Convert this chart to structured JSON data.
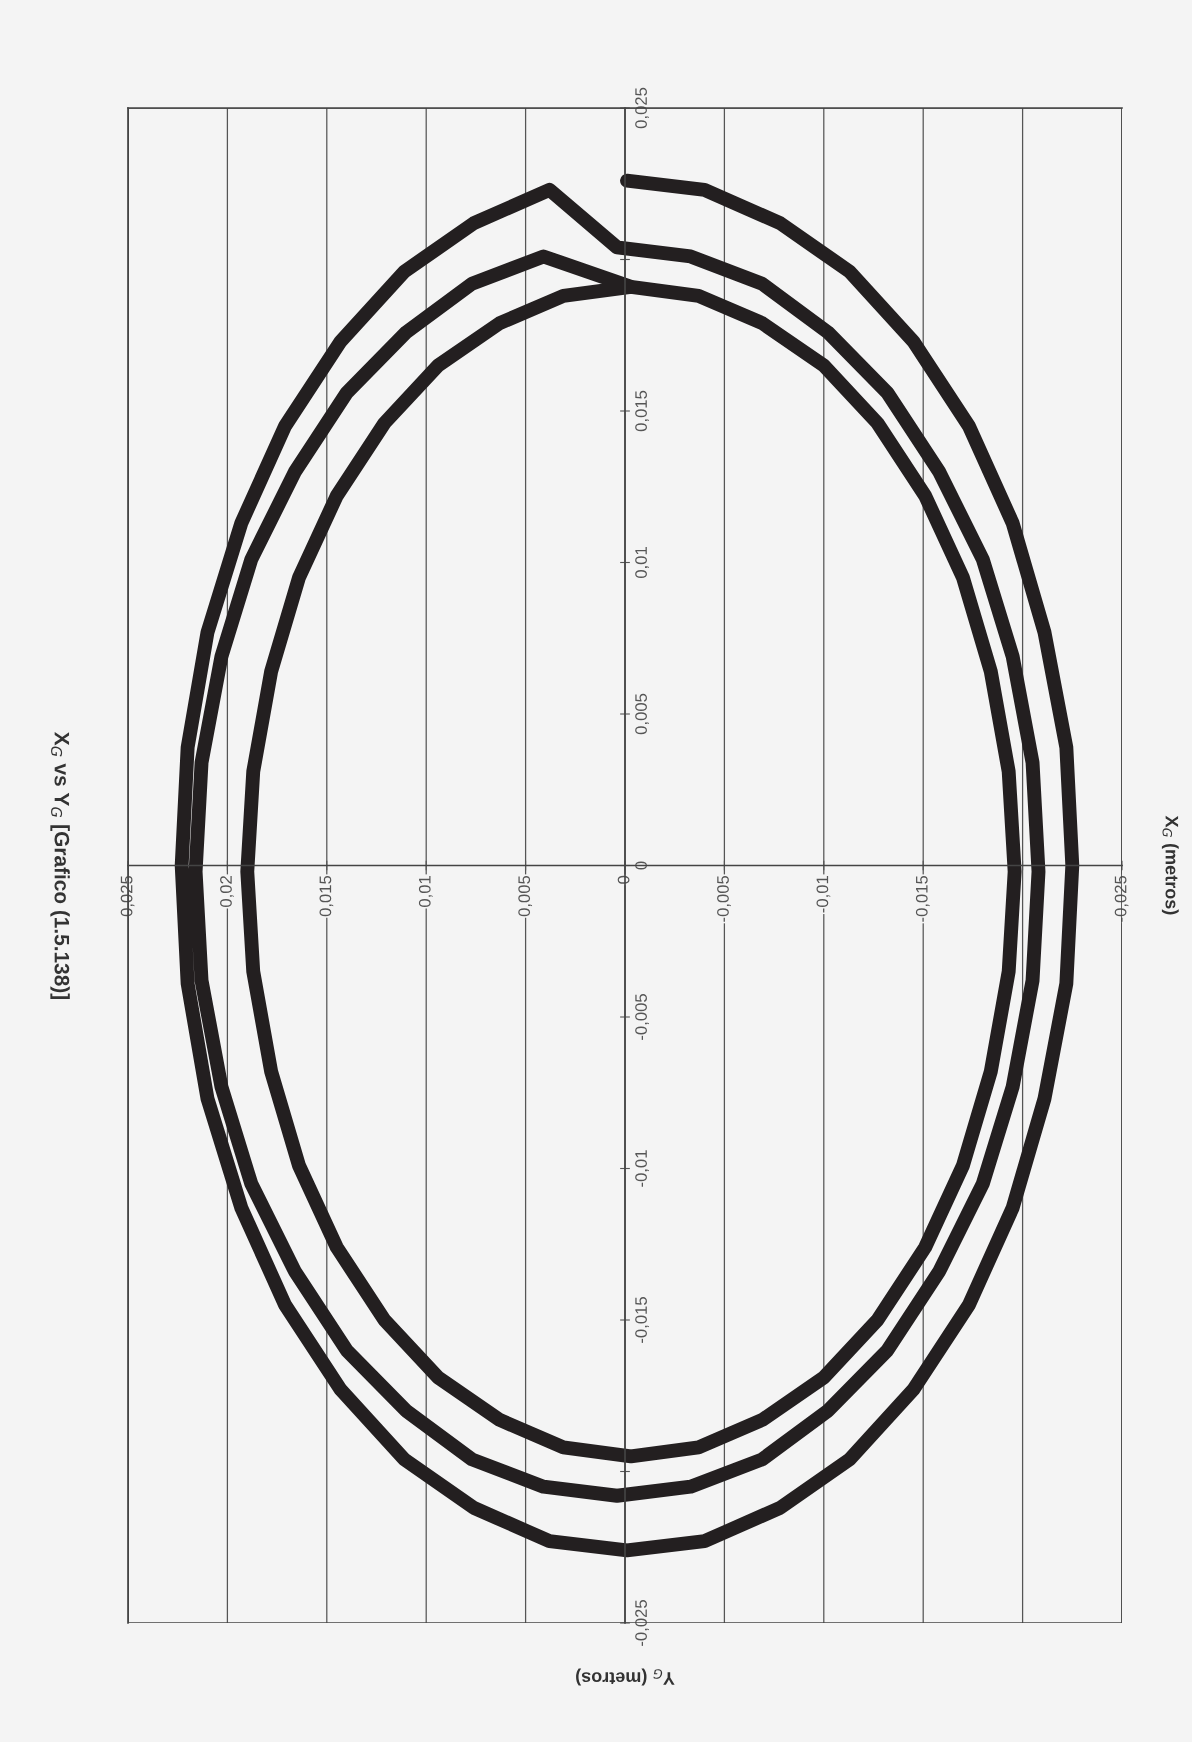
{
  "chart_data": {
    "type": "line",
    "title": "X$_{G}$ vs Y$_{G}$ [Grafico (1.5.138)]",
    "xlabel": "Y$_{G}$ (metros)",
    "ylabel": "X$_{G}$ (metros)",
    "xlim": [
      0.025,
      -0.025
    ],
    "ylim": [
      -0.025,
      0.025
    ],
    "xticks": [
      {
        "value": 0.025,
        "label": "0,025"
      },
      {
        "value": 0.02,
        "label": "0,02"
      },
      {
        "value": 0.015,
        "label": "0,015"
      },
      {
        "value": 0.01,
        "label": "0,01"
      },
      {
        "value": 0.005,
        "label": "0,005"
      },
      0,
      {
        "value": -0.005,
        "label": "-0,005"
      },
      {
        "value": -0.01,
        "label": "-0,01"
      },
      {
        "value": -0.015,
        "label": "-0,015"
      },
      {
        "value": -0.02,
        "label": null
      },
      {
        "value": -0.025,
        "label": "-0,025"
      }
    ],
    "yticks": [
      {
        "value": 0.025,
        "label": "0,025"
      },
      {
        "value": 0.02,
        "label": null
      },
      {
        "value": 0.015,
        "label": "0,015"
      },
      {
        "value": 0.01,
        "label": "0,01"
      },
      {
        "value": 0.005,
        "label": "0,005"
      },
      0,
      {
        "value": -0.005,
        "label": "-0,005"
      },
      {
        "value": -0.01,
        "label": "-0,01"
      },
      {
        "value": -0.015,
        "label": "-0,015"
      },
      {
        "value": -0.02,
        "label": null
      },
      {
        "value": -0.025,
        "label": "-0,025"
      }
    ],
    "grid": "x",
    "line_style": "solid",
    "series": [
      {
        "color": "#231f20",
        "x": [
          -0.0001,
          -0.004,
          -0.0078,
          -0.0113,
          -0.0145,
          -0.0173,
          -0.0195,
          -0.0211,
          -0.0222,
          -0.0225,
          -0.0222,
          -0.0211,
          -0.0195,
          -0.0173,
          -0.0145,
          -0.0113,
          -0.0078,
          -0.004,
          -0.0001,
          0.0038,
          0.0076,
          0.0111,
          0.0143,
          0.0171,
          0.0193,
          0.021,
          0.022,
          0.0223,
          0.022,
          0.021,
          0.0193,
          0.0171,
          0.0143,
          0.0111,
          0.0076,
          0.0038,
          0.0004,
          -0.0033,
          -0.0069,
          -0.0102,
          -0.0132,
          -0.0158,
          -0.018,
          -0.0195,
          -0.0205,
          -0.0208,
          -0.0205,
          -0.0195,
          -0.018,
          -0.0158,
          -0.0132,
          -0.0102,
          -0.0069,
          -0.0033,
          0.0004,
          0.0041,
          0.0077,
          0.011,
          0.014,
          0.0166,
          0.0188,
          0.0203,
          0.0213,
          0.0216,
          0.0213,
          0.0203,
          0.0188,
          0.0166,
          0.014,
          0.011,
          0.0077,
          0.0041,
          -0.0003,
          -0.0037,
          -0.0069,
          -0.01,
          -0.0127,
          -0.0151,
          -0.017,
          -0.0184,
          -0.0193,
          -0.0196,
          -0.0193,
          -0.0184,
          -0.017,
          -0.0151,
          -0.0127,
          -0.01,
          -0.0069,
          -0.0037,
          -0.0003,
          0.0031,
          0.0063,
          0.0094,
          0.0121,
          0.0145,
          0.0164,
          0.0178,
          0.0187,
          0.019,
          0.0187,
          0.0178,
          0.0164,
          0.0145,
          0.0121,
          0.0094,
          0.0063,
          0.0031,
          -0.0003
        ],
        "values": [
          0.0226,
          0.0223,
          0.0212,
          0.0196,
          0.0173,
          0.0145,
          0.0113,
          0.0077,
          0.0039,
          0.0,
          -0.0039,
          -0.0077,
          -0.0113,
          -0.0145,
          -0.0173,
          -0.0196,
          -0.0212,
          -0.0223,
          -0.0226,
          -0.0223,
          -0.0212,
          -0.0196,
          -0.0173,
          -0.0145,
          -0.0113,
          -0.0077,
          -0.0039,
          0.0,
          0.0039,
          0.0077,
          0.0113,
          0.0145,
          0.0173,
          0.0196,
          0.0212,
          0.0223,
          0.0204,
          0.0201,
          0.0192,
          0.0176,
          0.0156,
          0.013,
          0.0101,
          0.0069,
          0.0034,
          -0.0002,
          -0.0038,
          -0.0073,
          -0.0105,
          -0.0134,
          -0.016,
          -0.018,
          -0.0196,
          -0.0205,
          -0.0208,
          -0.0205,
          -0.0196,
          -0.018,
          -0.016,
          -0.0134,
          -0.0105,
          -0.0073,
          -0.0038,
          -0.0002,
          0.0034,
          0.0069,
          0.0101,
          0.013,
          0.0156,
          0.0176,
          0.0192,
          0.0201,
          0.0191,
          0.0188,
          0.0179,
          0.0165,
          0.0146,
          0.0122,
          0.0095,
          0.0064,
          0.0031,
          -0.0002,
          -0.0035,
          -0.0068,
          -0.0099,
          -0.0126,
          -0.015,
          -0.0169,
          -0.0183,
          -0.0192,
          -0.0195,
          -0.0192,
          -0.0183,
          -0.0169,
          -0.015,
          -0.0126,
          -0.0099,
          -0.0068,
          -0.0035,
          -0.0002,
          0.0031,
          0.0064,
          0.0095,
          0.0122,
          0.0146,
          0.0165,
          0.0179,
          0.0188,
          0.0191
        ]
      }
    ]
  }
}
